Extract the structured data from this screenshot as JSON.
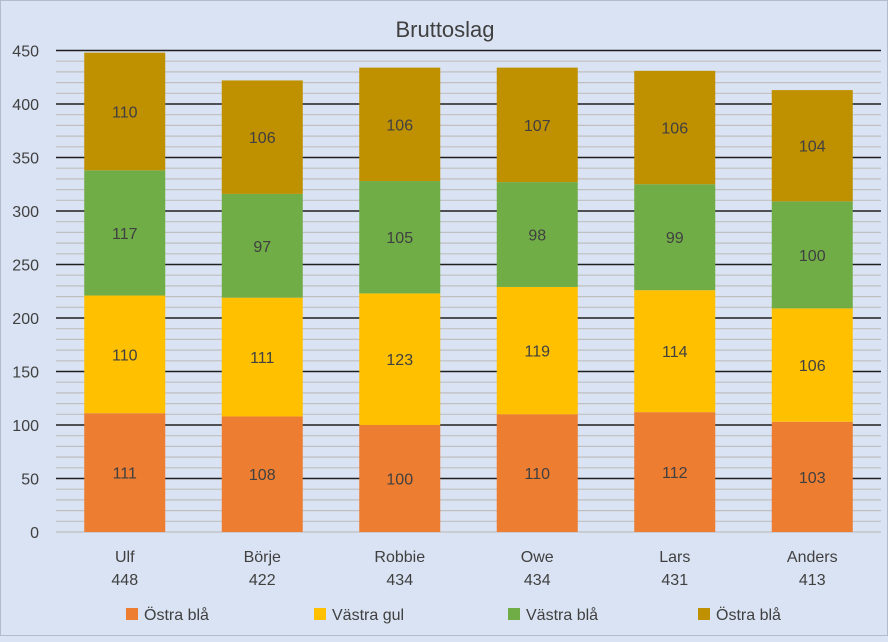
{
  "chart_data": {
    "type": "bar",
    "stacked": true,
    "title": "Bruttoslag",
    "xlabel": "",
    "ylabel": "",
    "ylim": [
      0,
      450
    ],
    "yticks": [
      0,
      50,
      100,
      150,
      200,
      250,
      300,
      350,
      400,
      450
    ],
    "minor_grid_step": 10,
    "grid": true,
    "legend_position": "bottom",
    "categories": [
      "Ulf",
      "Börje",
      "Robbie",
      "Owe",
      "Lars",
      "Anders"
    ],
    "totals": [
      "448",
      "422",
      "434",
      "434",
      "431",
      "413"
    ],
    "series": [
      {
        "name": "Östra blå",
        "color": "#ed7d31",
        "values": [
          111,
          108,
          100,
          110,
          112,
          103
        ]
      },
      {
        "name": "Västra gul",
        "color": "#ffc000",
        "values": [
          110,
          111,
          123,
          119,
          114,
          106
        ]
      },
      {
        "name": "Västra blå",
        "color": "#70ad47",
        "values": [
          117,
          97,
          105,
          98,
          99,
          100
        ]
      },
      {
        "name": "Östra blå",
        "color": "#bf9000",
        "values": [
          110,
          106,
          106,
          107,
          106,
          104
        ]
      }
    ]
  }
}
